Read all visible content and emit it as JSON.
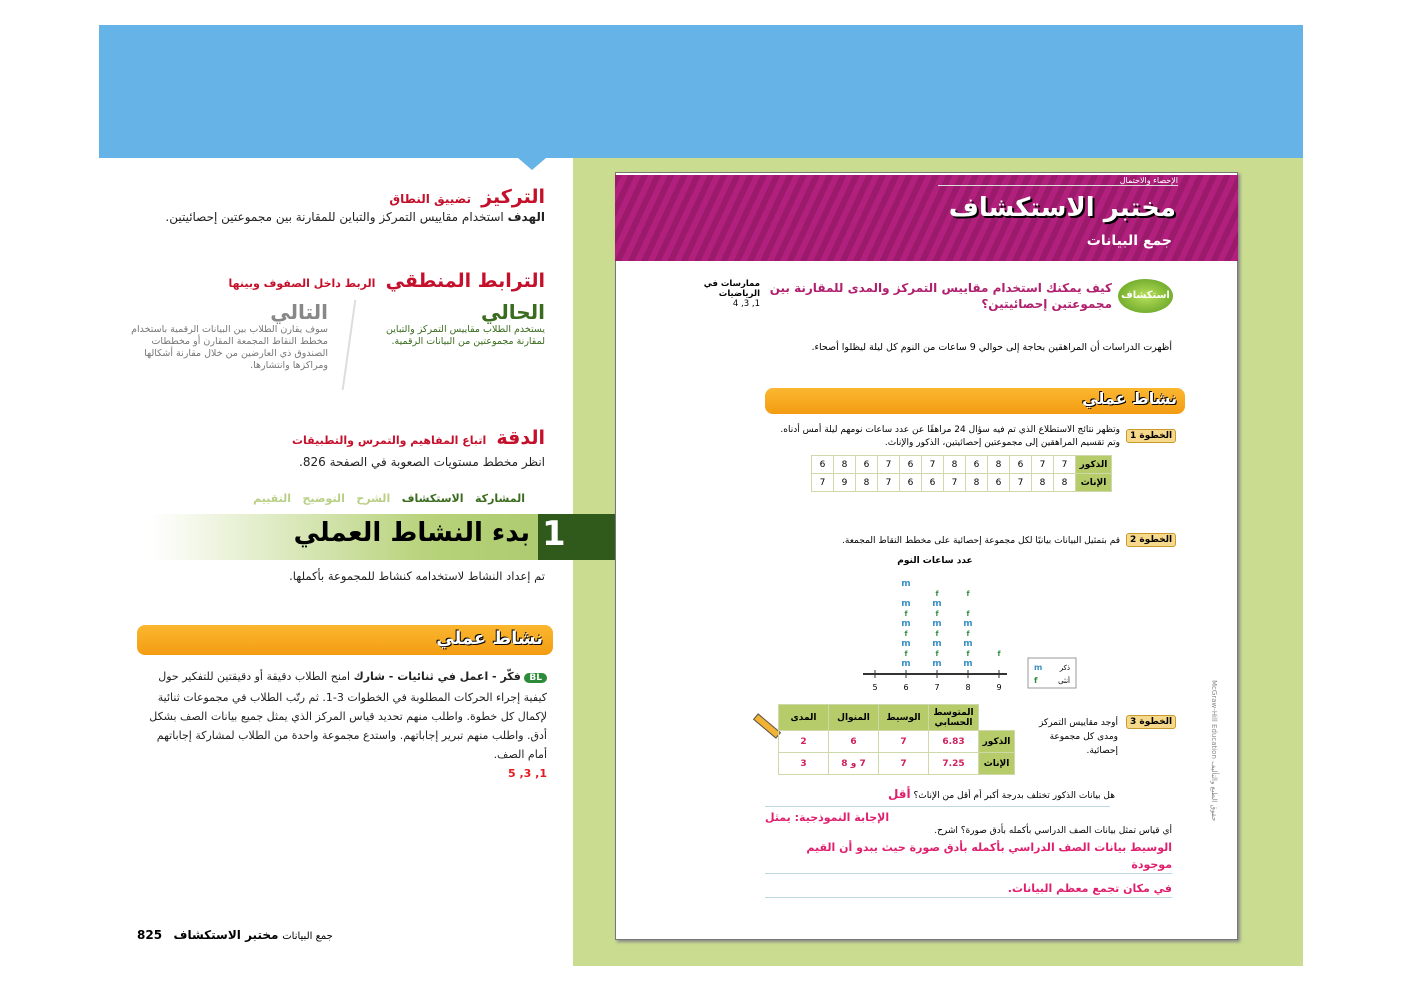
{
  "colors": {
    "header_blue": "#66b3e8",
    "sidebar_green": "#c9dc8f",
    "banner_magenta": "#9c1a6c",
    "accent_red": "#c4102b",
    "orange": "#f39c12"
  },
  "left": {
    "focus": {
      "title": "التركيز",
      "subtitle": "تضييق النطاق",
      "goal_label": "الهدف",
      "goal_text": "استخدام مقاييس التمركز والتباين للمقارنة بين مجموعتين إحصائيتين."
    },
    "coherence": {
      "title": "الترابط المنطقي",
      "subtitle": "الربط داخل الصفوف وبينها",
      "now_title": "الحالي",
      "now_text": "يستخدم الطلاب مقاييس التمركز والتباين لمقارنة مجموعتين من البيانات الرقمية.",
      "next_title": "التالي",
      "next_text": "سوف يقارن الطلاب بين البيانات الرقمية باستخدام مخطط النقاط المجمعة المقارن أو مخططات الصندوق ذي العارضين من خلال مقارنة أشكالها ومراكزها وانتشارها."
    },
    "rigor": {
      "title": "الدقة",
      "subtitle": "اتباع المفاهيم والتمرس والتطبيقات",
      "text": "انظر مخطط مستويات الصعوبة في الصفحة 826."
    },
    "phases": [
      "المشاركة",
      "الاستكشاف",
      "الشرح",
      "التوضيح",
      "التقييم"
    ],
    "section_number": "1",
    "section_title": "بدء النشاط العملي",
    "section_text": "تم إعداد النشاط لاستخدامه كنشاط للمجموعة بأكملها.",
    "activity_title": "نشاط عملي",
    "bl_badge": "BL",
    "activity_bold": "فكّر - اعمل في ثنائيات - شارك",
    "activity_text": "امنح الطلاب دقيقة أو دقيقتين للتفكير حول كيفية إجراء الحركات المطلوبة في الخطوات 3-1. ثم رتّب الطلاب في مجموعات ثنائية لإكمال كل خطوة. واطلب منهم تحديد قياس المركز الذي يمثل جميع بيانات الصف بشكل أدق. واطلب منهم تبرير إجاباتهم. واستدع مجموعة واحدة من الطلاب لمشاركة إجاباتهم أمام الصف.",
    "mp_refs": "1, 3, 5",
    "footer": {
      "page": "825",
      "title": "مختبر الاستكشاف",
      "subtitle": "جمع البيانات"
    }
  },
  "right": {
    "kicker": "الإحصاء والاحتمال",
    "title": "مختبر الاستكشاف",
    "subtitle": "جمع البيانات",
    "inquiry_badge": "استكشاف",
    "question": "كيف يمكنك استخدام مقاييس التمركز والمدى للمقارنة بين مجموعتين إحصائيتين؟",
    "mp_label": "ممارسات في الرياضيات",
    "mp_refs": "1, 3, 4",
    "intro": "أظهرت الدراسات أن المراهقين بحاجة إلى حوالي 9 ساعات من النوم كل ليلة ليظلوا أصحاء.",
    "activity_title": "نشاط عملي",
    "step1": {
      "label": "الخطوة 1",
      "text": "وتظهر نتائج الاستطلاع الذي تم فيه سؤال 24 مراهقًا عن عدد ساعات نومهم ليلة أمس أدناه. وتم تقسيم المراهقين إلى مجموعتين إحصائيتين، الذكور والإناث.",
      "rows": [
        {
          "label": "الذكور",
          "values": [
            7,
            7,
            6,
            8,
            6,
            8,
            7,
            6,
            7,
            6,
            8,
            6
          ]
        },
        {
          "label": "الإناث",
          "values": [
            8,
            8,
            7,
            6,
            8,
            7,
            6,
            6,
            7,
            8,
            9,
            7
          ]
        }
      ]
    },
    "step2": {
      "label": "الخطوة 2",
      "text": "قم بتمثيل البيانات بيانيًا لكل مجموعة إحصائية على مخطط النقاط المجمعة."
    },
    "chart_data": {
      "type": "scatter",
      "title": "عدد ساعات النوم",
      "x_ticks": [
        5,
        6,
        7,
        8,
        9
      ],
      "xlim": [
        5,
        9
      ],
      "series": [
        {
          "name": "ذكر",
          "symbol": "m",
          "counts": {
            "6": 5,
            "7": 4,
            "8": 3
          }
        },
        {
          "name": "أنثى",
          "symbol": "f",
          "counts": {
            "6": 3,
            "7": 4,
            "8": 4,
            "9": 1
          }
        }
      ]
    },
    "step3": {
      "label": "الخطوة 3",
      "text": "أوجد مقاييس التمركز ومدى كل مجموعة إحصائية.",
      "headers": [
        "المتوسط الحسابي",
        "الوسيط",
        "المنوال",
        "المدى"
      ],
      "rows": [
        {
          "label": "الذكور",
          "values": [
            "6.83",
            "7",
            "6",
            "2"
          ]
        },
        {
          "label": "الإناث",
          "values": [
            "7.25",
            "7",
            "7 و 8",
            "3"
          ]
        }
      ]
    },
    "q1": "هل بيانات الذكور تختلف بدرجة أكبر أم أقل من الإناث؟",
    "a1": "أقل",
    "q2": "أي قياس تمثل بيانات الصف الدراسي بأكمله بأدق صورة؟ اشرح.",
    "a2_label": "الإجابة النموذجية: يمثل",
    "a2_line1": "الوسيط بيانات الصف الدراسي بأكمله بأدق صورة حيث يبدو أن القيم موجودة",
    "a2_line2": "في مكان تجمع معظم البيانات.",
    "copyright": "McGraw-Hill Education حقوق الطبع والتأليف"
  }
}
